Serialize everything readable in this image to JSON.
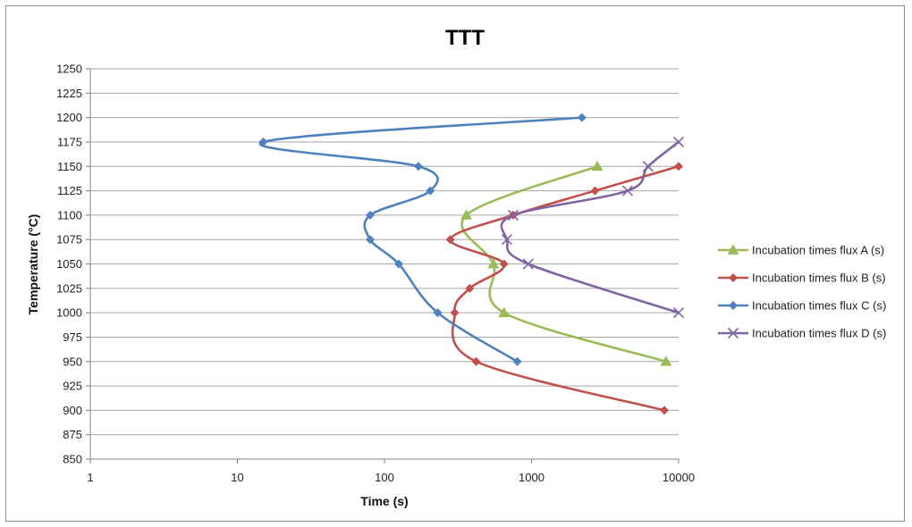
{
  "chart_data": {
    "type": "scatter",
    "title": "TTT",
    "xlabel": "Time (s)",
    "ylabel": "Temperature (°C)",
    "x_scale": "log",
    "xlim": [
      1,
      10000
    ],
    "ylim": [
      850,
      1250
    ],
    "x_ticks": [
      1,
      10,
      100,
      1000,
      10000
    ],
    "x_tick_labels": [
      "1",
      "10",
      "100",
      "1000",
      "10000"
    ],
    "y_ticks": [
      850,
      875,
      900,
      925,
      950,
      975,
      1000,
      1025,
      1050,
      1075,
      1100,
      1125,
      1150,
      1175,
      1200,
      1225,
      1250
    ],
    "y_tick_labels": [
      "850",
      "875",
      "900",
      "925",
      "950",
      "975",
      "1000",
      "1025",
      "1050",
      "1075",
      "1100",
      "1125",
      "1150",
      "1175",
      "1200",
      "1225",
      "1250"
    ],
    "grid": "horizontal",
    "legend_position": "right",
    "series": [
      {
        "name": "Incubation times flux A (s)",
        "color": "#9BBB59",
        "marker": "triangle",
        "points": [
          {
            "x": 2800,
            "y": 1150
          },
          {
            "x": 360,
            "y": 1100
          },
          {
            "x": 550,
            "y": 1050
          },
          {
            "x": 650,
            "y": 1000
          },
          {
            "x": 8200,
            "y": 950
          }
        ]
      },
      {
        "name": "Incubation times flux B (s)",
        "color": "#C0504D",
        "marker": "diamond",
        "points": [
          {
            "x": 10000,
            "y": 1150
          },
          {
            "x": 2700,
            "y": 1125
          },
          {
            "x": 750,
            "y": 1100
          },
          {
            "x": 280,
            "y": 1075
          },
          {
            "x": 650,
            "y": 1050
          },
          {
            "x": 380,
            "y": 1025
          },
          {
            "x": 300,
            "y": 1000
          },
          {
            "x": 420,
            "y": 950
          },
          {
            "x": 8000,
            "y": 900
          }
        ]
      },
      {
        "name": "Incubation times flux C (s)",
        "color": "#4F81BD",
        "marker": "diamond",
        "points": [
          {
            "x": 2200,
            "y": 1200
          },
          {
            "x": 15,
            "y": 1175
          },
          {
            "x": 170,
            "y": 1150
          },
          {
            "x": 205,
            "y": 1125
          },
          {
            "x": 80,
            "y": 1100
          },
          {
            "x": 80,
            "y": 1075
          },
          {
            "x": 125,
            "y": 1050
          },
          {
            "x": 230,
            "y": 1000
          },
          {
            "x": 800,
            "y": 950
          }
        ]
      },
      {
        "name": "Incubation times flux D (s)",
        "color": "#8064A2",
        "marker": "x",
        "points": [
          {
            "x": 10000,
            "y": 1175
          },
          {
            "x": 6200,
            "y": 1150
          },
          {
            "x": 4500,
            "y": 1125
          },
          {
            "x": 750,
            "y": 1100
          },
          {
            "x": 680,
            "y": 1075
          },
          {
            "x": 950,
            "y": 1050
          },
          {
            "x": 10000,
            "y": 1000
          }
        ]
      }
    ]
  }
}
